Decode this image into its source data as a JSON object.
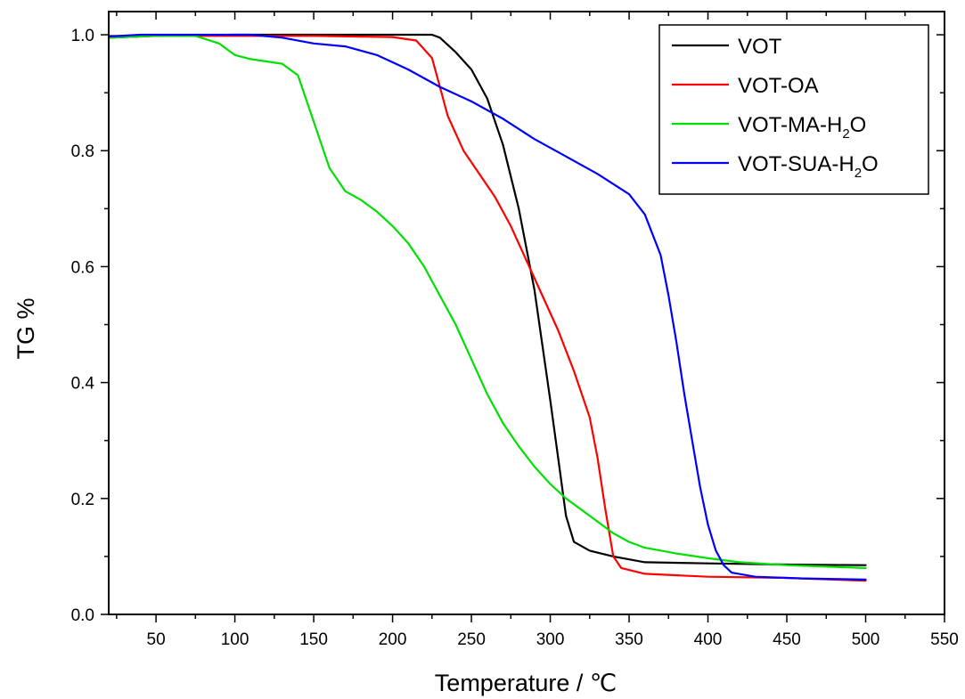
{
  "chart_data": {
    "type": "line",
    "xlabel": "Temperature / ℃",
    "ylabel": "TG %",
    "xlim": [
      20,
      550
    ],
    "ylim": [
      0,
      1.04
    ],
    "xticks": [
      50,
      100,
      150,
      200,
      250,
      300,
      350,
      400,
      450,
      500,
      550
    ],
    "yticks": [
      0.0,
      0.2,
      0.4,
      0.6,
      0.8,
      1.0
    ],
    "xtick_labels": [
      "50",
      "100",
      "150",
      "200",
      "250",
      "300",
      "350",
      "400",
      "450",
      "500",
      "550"
    ],
    "ytick_labels": [
      "0.0",
      "0.2",
      "0.4",
      "0.6",
      "0.8",
      "1.0"
    ],
    "legend_position": "top-right",
    "grid": false,
    "series": [
      {
        "name": "VOT",
        "label_main": "VOT",
        "label_sub": "",
        "label_tail": "",
        "color": "#000000",
        "points": [
          [
            20,
            0.995
          ],
          [
            50,
            0.998
          ],
          [
            100,
            1.0
          ],
          [
            150,
            1.0
          ],
          [
            200,
            1.0
          ],
          [
            225,
            1.0
          ],
          [
            230,
            0.995
          ],
          [
            240,
            0.97
          ],
          [
            250,
            0.94
          ],
          [
            260,
            0.89
          ],
          [
            270,
            0.81
          ],
          [
            280,
            0.7
          ],
          [
            290,
            0.56
          ],
          [
            300,
            0.37
          ],
          [
            305,
            0.27
          ],
          [
            310,
            0.17
          ],
          [
            315,
            0.125
          ],
          [
            325,
            0.11
          ],
          [
            340,
            0.1
          ],
          [
            360,
            0.09
          ],
          [
            400,
            0.088
          ],
          [
            450,
            0.086
          ],
          [
            500,
            0.085
          ]
        ]
      },
      {
        "name": "VOT-OA",
        "label_main": "VOT-OA",
        "label_sub": "",
        "label_tail": "",
        "color": "#ff0000",
        "points": [
          [
            20,
            0.998
          ],
          [
            100,
            0.998
          ],
          [
            150,
            0.998
          ],
          [
            200,
            0.996
          ],
          [
            215,
            0.99
          ],
          [
            225,
            0.96
          ],
          [
            230,
            0.91
          ],
          [
            235,
            0.86
          ],
          [
            245,
            0.8
          ],
          [
            255,
            0.76
          ],
          [
            265,
            0.72
          ],
          [
            275,
            0.67
          ],
          [
            285,
            0.61
          ],
          [
            295,
            0.55
          ],
          [
            305,
            0.49
          ],
          [
            315,
            0.42
          ],
          [
            325,
            0.34
          ],
          [
            330,
            0.27
          ],
          [
            335,
            0.18
          ],
          [
            340,
            0.1
          ],
          [
            345,
            0.08
          ],
          [
            360,
            0.07
          ],
          [
            400,
            0.065
          ],
          [
            450,
            0.063
          ],
          [
            500,
            0.058
          ]
        ]
      },
      {
        "name": "VOT-MA-H2O",
        "label_main": "VOT-MA-H",
        "label_sub": "2",
        "label_tail": "O",
        "color": "#00e000",
        "points": [
          [
            20,
            0.995
          ],
          [
            50,
            0.998
          ],
          [
            75,
            0.998
          ],
          [
            90,
            0.985
          ],
          [
            100,
            0.965
          ],
          [
            110,
            0.958
          ],
          [
            130,
            0.95
          ],
          [
            140,
            0.93
          ],
          [
            150,
            0.85
          ],
          [
            160,
            0.77
          ],
          [
            170,
            0.73
          ],
          [
            180,
            0.715
          ],
          [
            190,
            0.695
          ],
          [
            200,
            0.67
          ],
          [
            210,
            0.64
          ],
          [
            220,
            0.6
          ],
          [
            230,
            0.55
          ],
          [
            240,
            0.5
          ],
          [
            250,
            0.44
          ],
          [
            260,
            0.38
          ],
          [
            270,
            0.33
          ],
          [
            280,
            0.29
          ],
          [
            290,
            0.255
          ],
          [
            300,
            0.225
          ],
          [
            310,
            0.2
          ],
          [
            320,
            0.18
          ],
          [
            330,
            0.16
          ],
          [
            340,
            0.14
          ],
          [
            350,
            0.125
          ],
          [
            360,
            0.115
          ],
          [
            380,
            0.105
          ],
          [
            400,
            0.097
          ],
          [
            420,
            0.09
          ],
          [
            450,
            0.085
          ],
          [
            480,
            0.082
          ],
          [
            500,
            0.08
          ]
        ]
      },
      {
        "name": "VOT-SUA-H2O",
        "label_main": "VOT-SUA-H",
        "label_sub": "2",
        "label_tail": "O",
        "color": "#0000ff",
        "points": [
          [
            20,
            0.997
          ],
          [
            40,
            1.0
          ],
          [
            80,
            1.0
          ],
          [
            110,
            1.0
          ],
          [
            130,
            0.995
          ],
          [
            150,
            0.985
          ],
          [
            170,
            0.98
          ],
          [
            190,
            0.965
          ],
          [
            210,
            0.94
          ],
          [
            230,
            0.91
          ],
          [
            250,
            0.885
          ],
          [
            270,
            0.855
          ],
          [
            290,
            0.82
          ],
          [
            310,
            0.79
          ],
          [
            330,
            0.76
          ],
          [
            350,
            0.725
          ],
          [
            360,
            0.69
          ],
          [
            370,
            0.62
          ],
          [
            375,
            0.55
          ],
          [
            380,
            0.47
          ],
          [
            385,
            0.38
          ],
          [
            390,
            0.3
          ],
          [
            395,
            0.22
          ],
          [
            400,
            0.155
          ],
          [
            405,
            0.11
          ],
          [
            410,
            0.085
          ],
          [
            415,
            0.072
          ],
          [
            430,
            0.065
          ],
          [
            460,
            0.062
          ],
          [
            500,
            0.06
          ]
        ]
      }
    ]
  }
}
